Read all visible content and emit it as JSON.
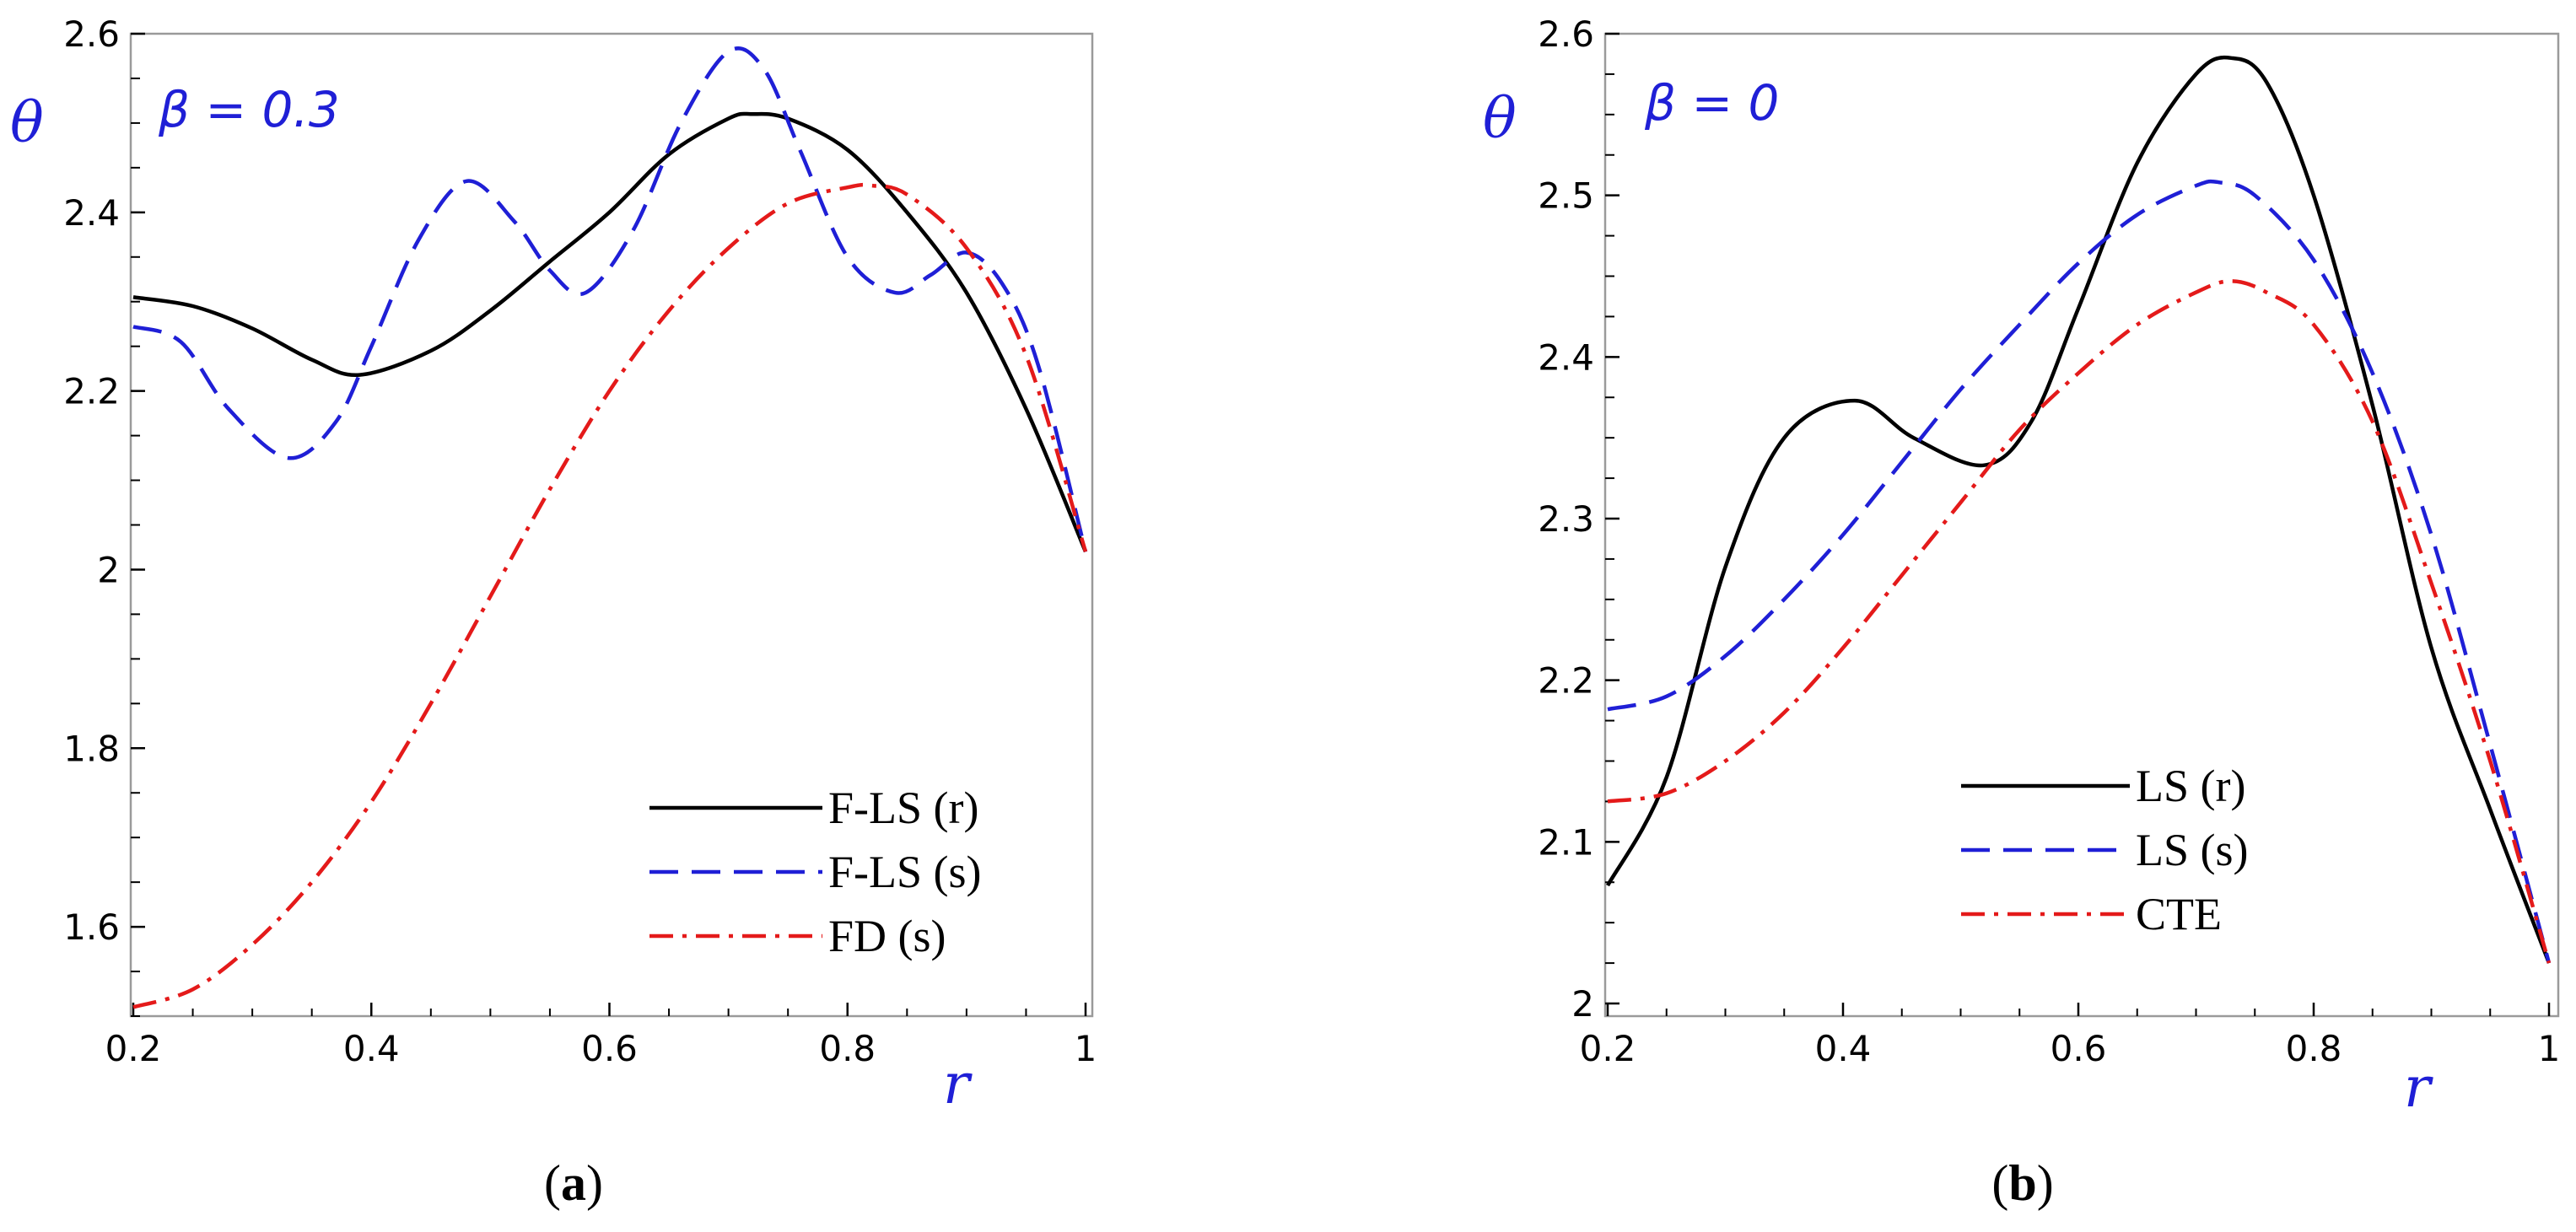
{
  "panels": [
    {
      "caption_letter": "a",
      "annotation": "β = 0.3",
      "y_axis_label": "θ",
      "x_axis_label": "r",
      "chart_data": {
        "type": "line",
        "title": "",
        "xlabel": "r",
        "ylabel": "θ",
        "xlim": [
          0.2,
          1.0
        ],
        "ylim": [
          1.5,
          2.6
        ],
        "xticks": [
          "0.2",
          "0.4",
          "0.6",
          "0.8",
          "1"
        ],
        "yticks": [
          "1.6",
          "1.8",
          "2",
          "2.2",
          "2.4",
          "2.6"
        ],
        "legend_position": "bottom-right",
        "series": [
          {
            "name": "F-LS (r)",
            "color": "#000000",
            "dash": "solid",
            "x": [
              0.2,
              0.25,
              0.3,
              0.35,
              0.39,
              0.45,
              0.5,
              0.55,
              0.6,
              0.65,
              0.7,
              0.72,
              0.75,
              0.8,
              0.85,
              0.9,
              0.95,
              1.0
            ],
            "y": [
              2.305,
              2.295,
              2.27,
              2.235,
              2.218,
              2.245,
              2.29,
              2.345,
              2.4,
              2.465,
              2.505,
              2.51,
              2.505,
              2.47,
              2.4,
              2.31,
              2.18,
              2.02
            ]
          },
          {
            "name": "F-LS (s)",
            "color": "#1f1fd6",
            "dash": "dashed",
            "x": [
              0.2,
              0.24,
              0.28,
              0.33,
              0.37,
              0.4,
              0.44,
              0.48,
              0.52,
              0.55,
              0.58,
              0.62,
              0.66,
              0.7,
              0.73,
              0.76,
              0.8,
              0.84,
              0.87,
              0.9,
              0.93,
              0.96,
              1.0
            ],
            "y": [
              2.272,
              2.255,
              2.18,
              2.125,
              2.165,
              2.25,
              2.37,
              2.435,
              2.39,
              2.335,
              2.31,
              2.38,
              2.5,
              2.58,
              2.56,
              2.47,
              2.35,
              2.31,
              2.33,
              2.355,
              2.32,
              2.23,
              2.02
            ]
          },
          {
            "name": "FD (s)",
            "color": "#e41a1a",
            "dash": "dashdot",
            "x": [
              0.2,
              0.25,
              0.3,
              0.35,
              0.4,
              0.45,
              0.5,
              0.55,
              0.6,
              0.65,
              0.7,
              0.75,
              0.8,
              0.82,
              0.85,
              0.9,
              0.95,
              1.0
            ],
            "y": [
              1.51,
              1.53,
              1.58,
              1.65,
              1.74,
              1.85,
              1.97,
              2.09,
              2.2,
              2.29,
              2.36,
              2.41,
              2.428,
              2.43,
              2.42,
              2.36,
              2.24,
              2.02
            ]
          }
        ]
      }
    },
    {
      "caption_letter": "b",
      "annotation": "β = 0",
      "y_axis_label": "θ",
      "x_axis_label": "r",
      "chart_data": {
        "type": "line",
        "title": "",
        "xlabel": "r",
        "ylabel": "θ",
        "xlim": [
          0.2,
          1.0
        ],
        "ylim": [
          2.0,
          2.6
        ],
        "xticks": [
          "0.2",
          "0.4",
          "0.6",
          "0.8",
          "1"
        ],
        "yticks": [
          "2",
          "2.1",
          "2.2",
          "2.3",
          "2.4",
          "2.5",
          "2.6"
        ],
        "legend_position": "bottom-right",
        "series": [
          {
            "name": "LS (r)",
            "color": "#000000",
            "dash": "solid",
            "x": [
              0.2,
              0.25,
              0.3,
              0.35,
              0.41,
              0.46,
              0.52,
              0.56,
              0.6,
              0.65,
              0.7,
              0.73,
              0.76,
              0.8,
              0.85,
              0.9,
              0.95,
              1.0
            ],
            "y": [
              2.073,
              2.14,
              2.27,
              2.35,
              2.373,
              2.35,
              2.333,
              2.36,
              2.43,
              2.52,
              2.575,
              2.585,
              2.57,
              2.5,
              2.37,
              2.22,
              2.12,
              2.025
            ]
          },
          {
            "name": "LS (s)",
            "color": "#1f1fd6",
            "dash": "dashed",
            "x": [
              0.2,
              0.25,
              0.3,
              0.35,
              0.4,
              0.45,
              0.5,
              0.55,
              0.6,
              0.65,
              0.7,
              0.72,
              0.75,
              0.8,
              0.85,
              0.9,
              0.95,
              1.0
            ],
            "y": [
              2.182,
              2.19,
              2.215,
              2.25,
              2.29,
              2.335,
              2.38,
              2.42,
              2.458,
              2.488,
              2.506,
              2.508,
              2.5,
              2.46,
              2.39,
              2.29,
              2.16,
              2.025
            ]
          },
          {
            "name": "CTE",
            "color": "#e41a1a",
            "dash": "dashdot",
            "x": [
              0.2,
              0.25,
              0.3,
              0.35,
              0.4,
              0.45,
              0.5,
              0.55,
              0.6,
              0.65,
              0.7,
              0.73,
              0.76,
              0.8,
              0.85,
              0.9,
              0.95,
              1.0
            ],
            "y": [
              2.125,
              2.13,
              2.15,
              2.18,
              2.22,
              2.265,
              2.31,
              2.355,
              2.39,
              2.42,
              2.44,
              2.447,
              2.44,
              2.42,
              2.36,
              2.26,
              2.15,
              2.025
            ]
          }
        ]
      }
    }
  ]
}
